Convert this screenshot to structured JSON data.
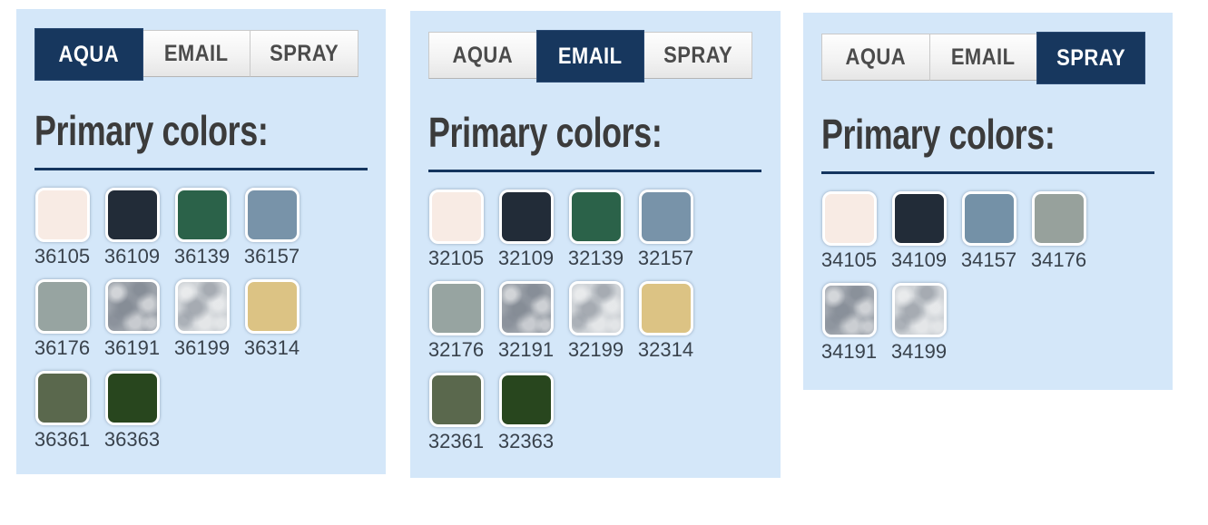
{
  "theme": {
    "page_bg": "#ffffff",
    "panel_bg": "#d4e7f9",
    "tab_active_bg": "#17375e",
    "tab_active_text": "#ffffff",
    "tab_inactive_text": "#4b4b4b",
    "tab_border": "#c9c9c9",
    "rule_color": "#14355f",
    "heading_color": "#3b3b3b",
    "code_color": "#39424c"
  },
  "panels": [
    {
      "name": "aqua",
      "heading": "Primary colors:",
      "tabs": [
        {
          "label": "AQUA",
          "active": true
        },
        {
          "label": "EMAIL",
          "active": false
        },
        {
          "label": "SPRAY",
          "active": false
        }
      ],
      "swatches": [
        {
          "code": "36105",
          "color": "#f8ebe4",
          "texture": "solid"
        },
        {
          "code": "36109",
          "color": "#222c38",
          "texture": "solid"
        },
        {
          "code": "36139",
          "color": "#2b6249",
          "texture": "solid"
        },
        {
          "code": "36157",
          "color": "#7893a9",
          "texture": "solid"
        },
        {
          "code": "36176",
          "color": "#97a4a1",
          "texture": "solid"
        },
        {
          "code": "36191",
          "color": "#9ba1a9",
          "texture": "metallic"
        },
        {
          "code": "36199",
          "color": "#ced2d6",
          "texture": "metallic"
        },
        {
          "code": "36314",
          "color": "#dcc384",
          "texture": "solid"
        },
        {
          "code": "36361",
          "color": "#5a684d",
          "texture": "solid"
        },
        {
          "code": "36363",
          "color": "#28461e",
          "texture": "solid"
        }
      ]
    },
    {
      "name": "email",
      "heading": "Primary colors:",
      "tabs": [
        {
          "label": "AQUA",
          "active": false
        },
        {
          "label": "EMAIL",
          "active": true
        },
        {
          "label": "SPRAY",
          "active": false
        }
      ],
      "swatches": [
        {
          "code": "32105",
          "color": "#f8ebe4",
          "texture": "solid"
        },
        {
          "code": "32109",
          "color": "#222c38",
          "texture": "solid"
        },
        {
          "code": "32139",
          "color": "#2b6249",
          "texture": "solid"
        },
        {
          "code": "32157",
          "color": "#7893a9",
          "texture": "solid"
        },
        {
          "code": "32176",
          "color": "#97a4a1",
          "texture": "solid"
        },
        {
          "code": "32191",
          "color": "#9ba1a9",
          "texture": "metallic"
        },
        {
          "code": "32199",
          "color": "#ced2d6",
          "texture": "metallic"
        },
        {
          "code": "32314",
          "color": "#dcc384",
          "texture": "solid"
        },
        {
          "code": "32361",
          "color": "#5a684d",
          "texture": "solid"
        },
        {
          "code": "32363",
          "color": "#28461e",
          "texture": "solid"
        }
      ]
    },
    {
      "name": "spray",
      "heading": "Primary colors:",
      "tabs": [
        {
          "label": "AQUA",
          "active": false
        },
        {
          "label": "EMAIL",
          "active": false
        },
        {
          "label": "SPRAY",
          "active": true
        }
      ],
      "swatches": [
        {
          "code": "34105",
          "color": "#f8ebe4",
          "texture": "solid"
        },
        {
          "code": "34109",
          "color": "#222c38",
          "texture": "solid"
        },
        {
          "code": "34157",
          "color": "#7491a7",
          "texture": "solid"
        },
        {
          "code": "34176",
          "color": "#97a19c",
          "texture": "solid"
        },
        {
          "code": "34191",
          "color": "#a0a6ae",
          "texture": "metallic"
        },
        {
          "code": "34199",
          "color": "#ced2d6",
          "texture": "metallic"
        }
      ]
    }
  ]
}
